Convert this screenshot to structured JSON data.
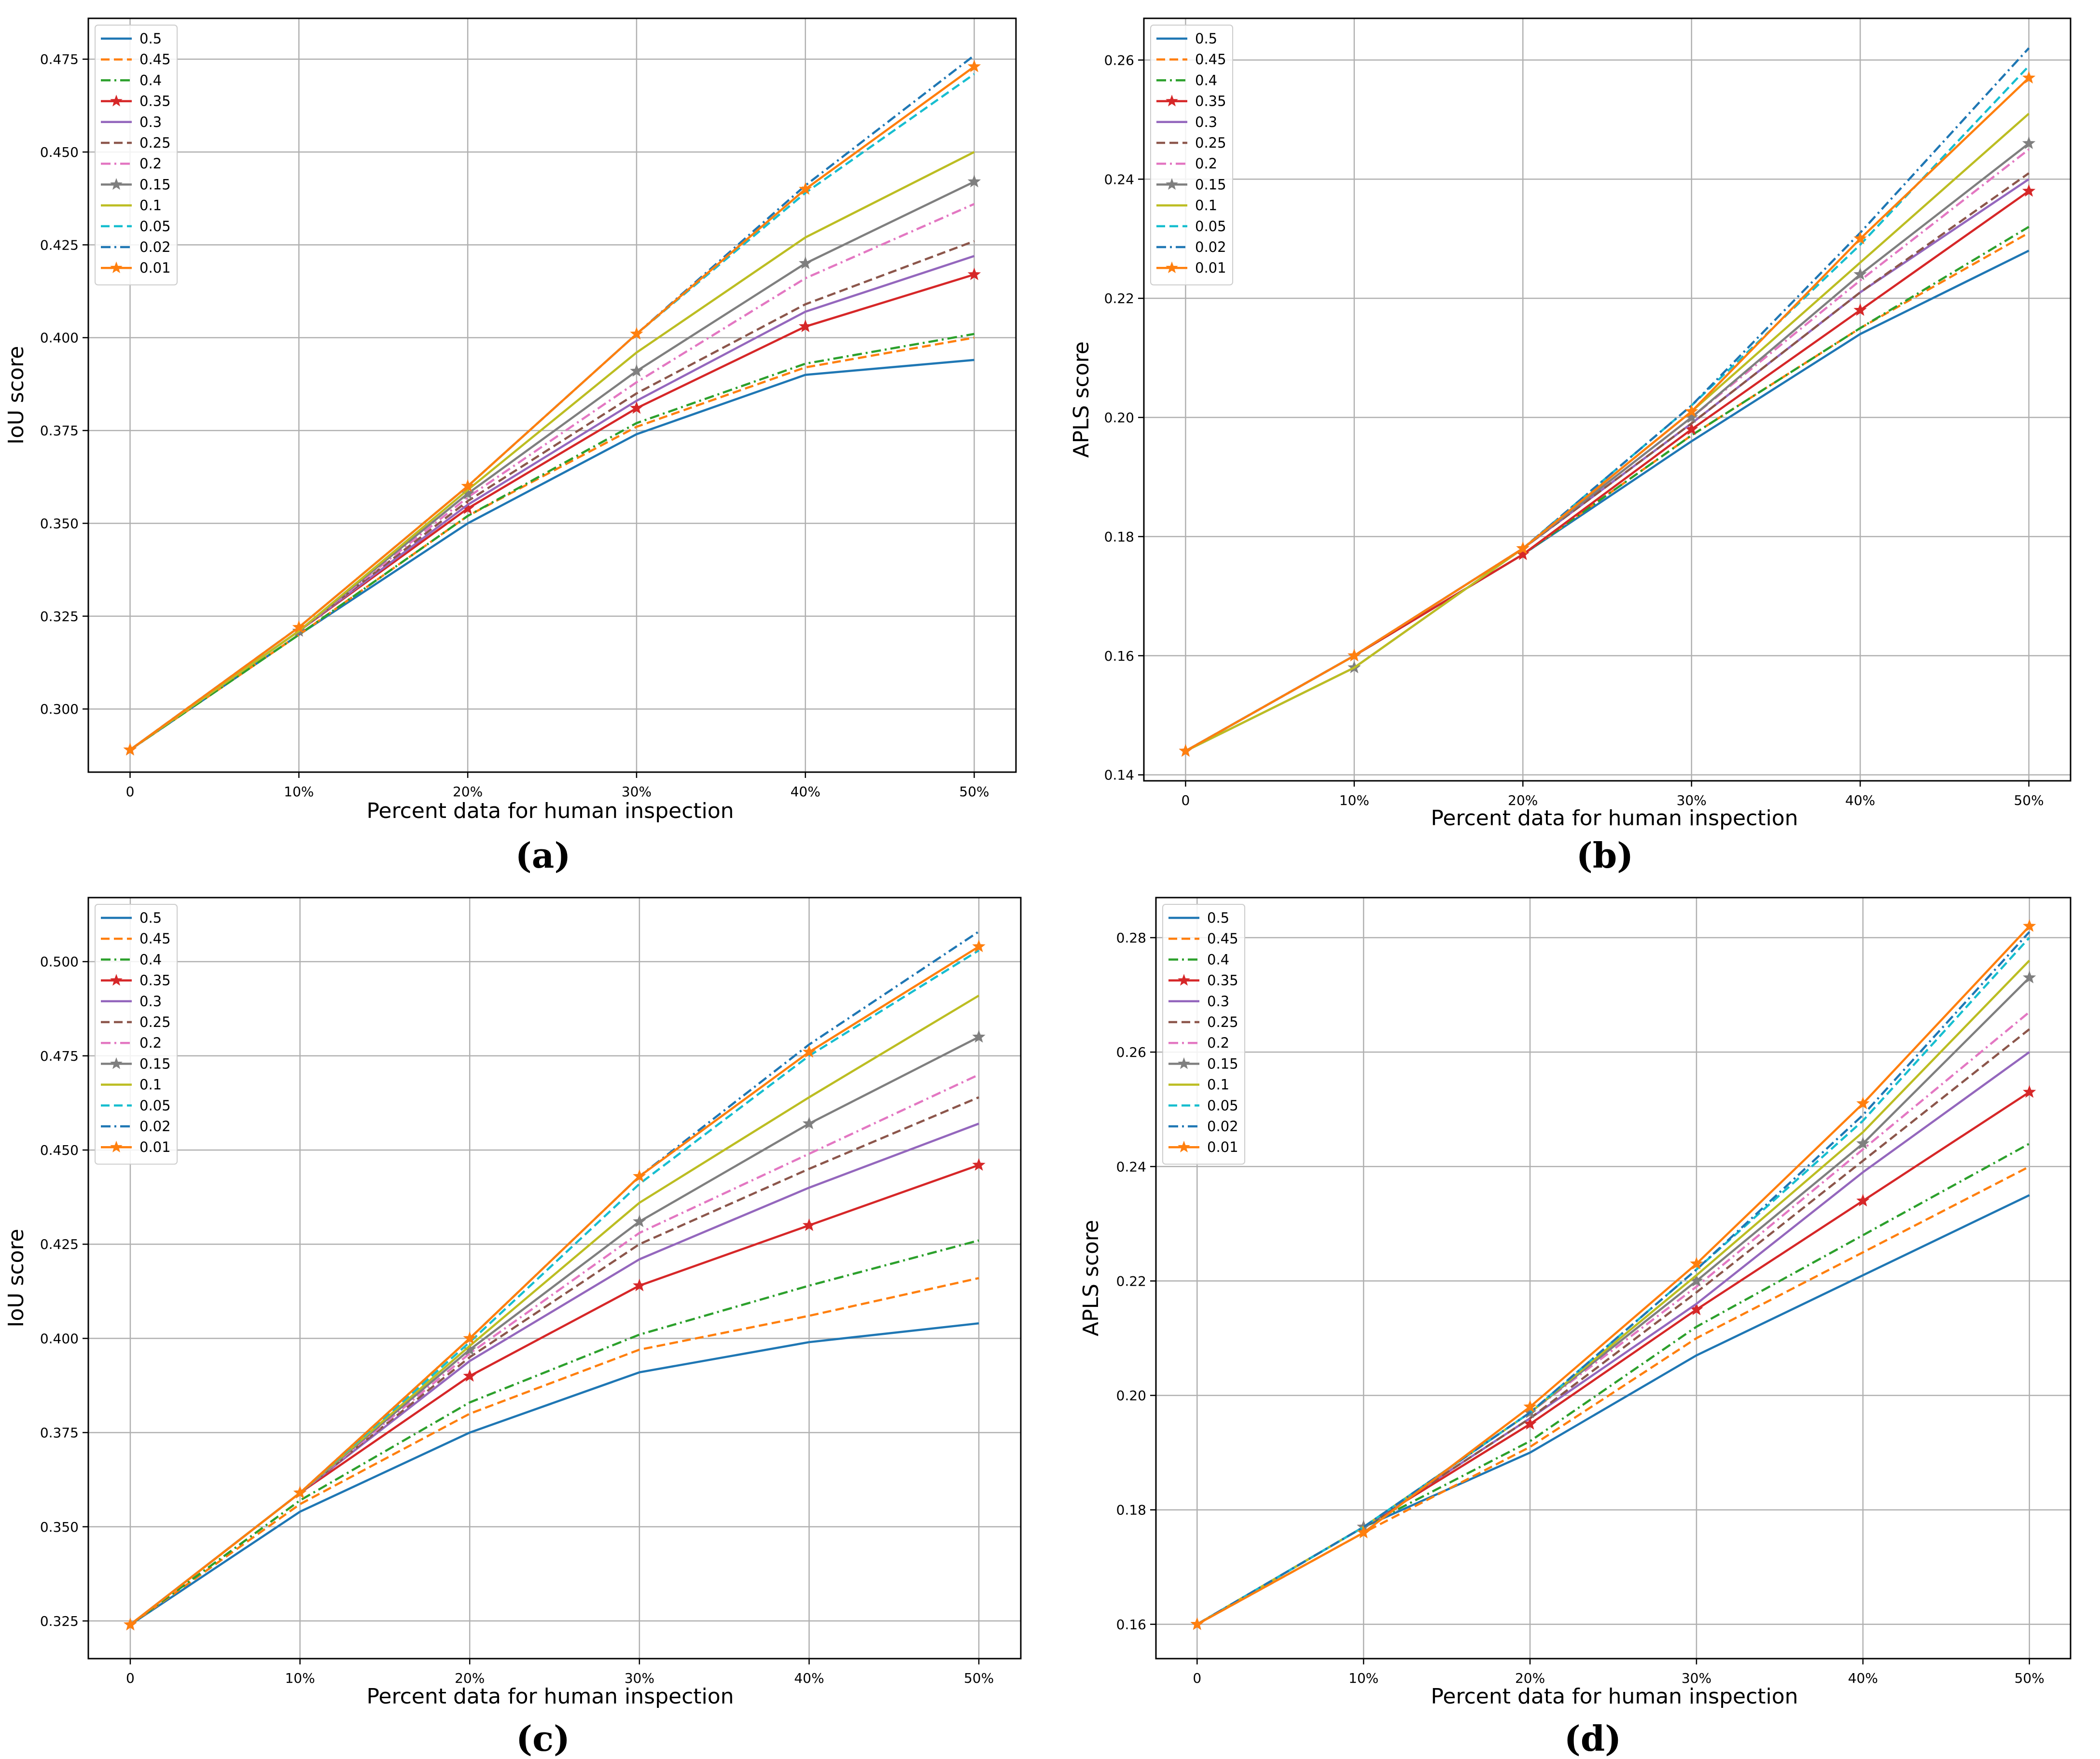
{
  "xlabel": "Percent data for human inspection",
  "legend_entries": [
    "0.5",
    "0.45",
    "0.4",
    "0.35",
    "0.3",
    "0.25",
    "0.2",
    "0.15",
    "0.1",
    "0.05",
    "0.02",
    "0.01"
  ],
  "series_styles": [
    {
      "name": "0.5",
      "color": "#1f77b4",
      "dash": "solid",
      "marker": ""
    },
    {
      "name": "0.45",
      "color": "#ff7f0e",
      "dash": "dashed",
      "marker": ""
    },
    {
      "name": "0.4",
      "color": "#2ca02c",
      "dash": "dashdot",
      "marker": ""
    },
    {
      "name": "0.35",
      "color": "#d62728",
      "dash": "solid",
      "marker": "star"
    },
    {
      "name": "0.3",
      "color": "#9467bd",
      "dash": "solid",
      "marker": ""
    },
    {
      "name": "0.25",
      "color": "#8c564b",
      "dash": "dashed",
      "marker": ""
    },
    {
      "name": "0.2",
      "color": "#e377c2",
      "dash": "dashdot",
      "marker": ""
    },
    {
      "name": "0.15",
      "color": "#7f7f7f",
      "dash": "solid",
      "marker": "star"
    },
    {
      "name": "0.1",
      "color": "#bcbd22",
      "dash": "solid",
      "marker": ""
    },
    {
      "name": "0.05",
      "color": "#17becf",
      "dash": "dashed",
      "marker": ""
    },
    {
      "name": "0.02",
      "color": "#1f77b4",
      "dash": "dashdot",
      "marker": ""
    },
    {
      "name": "0.01",
      "color": "#ff7f0e",
      "dash": "solid",
      "marker": "star"
    }
  ],
  "chart_data": [
    {
      "type": "line",
      "panel_label": "(a)",
      "ylabel": "IoU score",
      "categories": [
        "0",
        "10%",
        "20%",
        "30%",
        "40%",
        "50%"
      ],
      "yticks": [
        "0.300",
        "0.325",
        "0.350",
        "0.375",
        "0.400",
        "0.425",
        "0.450",
        "0.475"
      ],
      "ylim": [
        0.283,
        0.486
      ],
      "grid": true,
      "legend_position": "top-left",
      "series": [
        {
          "name": "0.5",
          "values": [
            0.289,
            0.32,
            0.35,
            0.374,
            0.39,
            0.394
          ]
        },
        {
          "name": "0.45",
          "values": [
            0.289,
            0.32,
            0.352,
            0.376,
            0.392,
            0.4
          ]
        },
        {
          "name": "0.4",
          "values": [
            0.289,
            0.32,
            0.352,
            0.377,
            0.393,
            0.401
          ]
        },
        {
          "name": "0.35",
          "values": [
            0.289,
            0.321,
            0.354,
            0.381,
            0.403,
            0.417
          ]
        },
        {
          "name": "0.3",
          "values": [
            0.289,
            0.321,
            0.355,
            0.383,
            0.407,
            0.422
          ]
        },
        {
          "name": "0.25",
          "values": [
            0.289,
            0.321,
            0.356,
            0.385,
            0.409,
            0.426
          ]
        },
        {
          "name": "0.2",
          "values": [
            0.289,
            0.321,
            0.357,
            0.388,
            0.416,
            0.436
          ]
        },
        {
          "name": "0.15",
          "values": [
            0.289,
            0.321,
            0.358,
            0.391,
            0.42,
            0.442
          ]
        },
        {
          "name": "0.1",
          "values": [
            0.289,
            0.321,
            0.359,
            0.396,
            0.427,
            0.45
          ]
        },
        {
          "name": "0.05",
          "values": [
            0.289,
            0.322,
            0.36,
            0.401,
            0.439,
            0.471
          ]
        },
        {
          "name": "0.02",
          "values": [
            0.289,
            0.322,
            0.36,
            0.401,
            0.441,
            0.476
          ]
        },
        {
          "name": "0.01",
          "values": [
            0.289,
            0.322,
            0.36,
            0.401,
            0.44,
            0.473
          ]
        }
      ]
    },
    {
      "type": "line",
      "panel_label": "(b)",
      "ylabel": "APLS score",
      "categories": [
        "0",
        "10%",
        "20%",
        "30%",
        "40%",
        "50%"
      ],
      "yticks": [
        "0.14",
        "0.16",
        "0.18",
        "0.20",
        "0.22",
        "0.24",
        "0.26"
      ],
      "ylim": [
        0.139,
        0.267
      ],
      "grid": true,
      "legend_position": "top-left",
      "series": [
        {
          "name": "0.5",
          "values": [
            0.144,
            0.16,
            0.177,
            0.196,
            0.214,
            0.228
          ]
        },
        {
          "name": "0.45",
          "values": [
            0.144,
            0.16,
            0.177,
            0.197,
            0.215,
            0.231
          ]
        },
        {
          "name": "0.4",
          "values": [
            0.144,
            0.16,
            0.177,
            0.197,
            0.215,
            0.232
          ]
        },
        {
          "name": "0.35",
          "values": [
            0.144,
            0.16,
            0.177,
            0.198,
            0.218,
            0.238
          ]
        },
        {
          "name": "0.3",
          "values": [
            0.144,
            0.16,
            0.178,
            0.199,
            0.221,
            0.24
          ]
        },
        {
          "name": "0.25",
          "values": [
            0.144,
            0.16,
            0.178,
            0.199,
            0.221,
            0.241
          ]
        },
        {
          "name": "0.2",
          "values": [
            0.144,
            0.16,
            0.178,
            0.2,
            0.223,
            0.245
          ]
        },
        {
          "name": "0.15",
          "values": [
            0.144,
            0.158,
            0.178,
            0.2,
            0.224,
            0.246
          ]
        },
        {
          "name": "0.1",
          "values": [
            0.144,
            0.158,
            0.178,
            0.201,
            0.226,
            0.251
          ]
        },
        {
          "name": "0.05",
          "values": [
            0.144,
            0.16,
            0.178,
            0.202,
            0.229,
            0.259
          ]
        },
        {
          "name": "0.02",
          "values": [
            0.144,
            0.16,
            0.178,
            0.202,
            0.231,
            0.262
          ]
        },
        {
          "name": "0.01",
          "values": [
            0.144,
            0.16,
            0.178,
            0.201,
            0.23,
            0.257
          ]
        }
      ]
    },
    {
      "type": "line",
      "panel_label": "(c)",
      "ylabel": "IoU score",
      "categories": [
        "0",
        "10%",
        "20%",
        "30%",
        "40%",
        "50%"
      ],
      "yticks": [
        "0.325",
        "0.350",
        "0.375",
        "0.400",
        "0.425",
        "0.450",
        "0.475",
        "0.500"
      ],
      "ylim": [
        0.315,
        0.517
      ],
      "grid": true,
      "legend_position": "top-left",
      "series": [
        {
          "name": "0.5",
          "values": [
            0.324,
            0.354,
            0.375,
            0.391,
            0.399,
            0.404
          ]
        },
        {
          "name": "0.45",
          "values": [
            0.324,
            0.356,
            0.38,
            0.397,
            0.406,
            0.416
          ]
        },
        {
          "name": "0.4",
          "values": [
            0.324,
            0.357,
            0.383,
            0.401,
            0.414,
            0.426
          ]
        },
        {
          "name": "0.35",
          "values": [
            0.324,
            0.359,
            0.39,
            0.414,
            0.43,
            0.446
          ]
        },
        {
          "name": "0.3",
          "values": [
            0.324,
            0.359,
            0.394,
            0.421,
            0.44,
            0.457
          ]
        },
        {
          "name": "0.25",
          "values": [
            0.324,
            0.359,
            0.395,
            0.425,
            0.445,
            0.464
          ]
        },
        {
          "name": "0.2",
          "values": [
            0.324,
            0.359,
            0.396,
            0.428,
            0.449,
            0.47
          ]
        },
        {
          "name": "0.15",
          "values": [
            0.324,
            0.359,
            0.397,
            0.431,
            0.457,
            0.48
          ]
        },
        {
          "name": "0.1",
          "values": [
            0.324,
            0.359,
            0.398,
            0.436,
            0.464,
            0.491
          ]
        },
        {
          "name": "0.05",
          "values": [
            0.324,
            0.359,
            0.399,
            0.441,
            0.475,
            0.503
          ]
        },
        {
          "name": "0.02",
          "values": [
            0.324,
            0.359,
            0.4,
            0.443,
            0.478,
            0.508
          ]
        },
        {
          "name": "0.01",
          "values": [
            0.324,
            0.359,
            0.4,
            0.443,
            0.476,
            0.504
          ]
        }
      ]
    },
    {
      "type": "line",
      "panel_label": "(d)",
      "ylabel": "APLS score",
      "categories": [
        "0",
        "10%",
        "20%",
        "30%",
        "40%",
        "50%"
      ],
      "yticks": [
        "0.16",
        "0.18",
        "0.20",
        "0.22",
        "0.24",
        "0.26",
        "0.28"
      ],
      "ylim": [
        0.154,
        0.287
      ],
      "grid": true,
      "legend_position": "top-left",
      "series": [
        {
          "name": "0.5",
          "values": [
            0.16,
            0.177,
            0.19,
            0.207,
            0.221,
            0.235
          ]
        },
        {
          "name": "0.45",
          "values": [
            0.16,
            0.176,
            0.191,
            0.21,
            0.225,
            0.24
          ]
        },
        {
          "name": "0.4",
          "values": [
            0.16,
            0.177,
            0.192,
            0.212,
            0.228,
            0.244
          ]
        },
        {
          "name": "0.35",
          "values": [
            0.16,
            0.177,
            0.195,
            0.215,
            0.234,
            0.253
          ]
        },
        {
          "name": "0.3",
          "values": [
            0.16,
            0.177,
            0.196,
            0.216,
            0.239,
            0.26
          ]
        },
        {
          "name": "0.25",
          "values": [
            0.16,
            0.177,
            0.196,
            0.218,
            0.241,
            0.264
          ]
        },
        {
          "name": "0.2",
          "values": [
            0.16,
            0.177,
            0.197,
            0.219,
            0.243,
            0.267
          ]
        },
        {
          "name": "0.15",
          "values": [
            0.16,
            0.177,
            0.197,
            0.22,
            0.244,
            0.273
          ]
        },
        {
          "name": "0.1",
          "values": [
            0.16,
            0.177,
            0.197,
            0.221,
            0.246,
            0.276
          ]
        },
        {
          "name": "0.05",
          "values": [
            0.16,
            0.177,
            0.197,
            0.222,
            0.248,
            0.28
          ]
        },
        {
          "name": "0.02",
          "values": [
            0.16,
            0.177,
            0.197,
            0.222,
            0.249,
            0.281
          ]
        },
        {
          "name": "0.01",
          "values": [
            0.16,
            0.176,
            0.198,
            0.223,
            0.251,
            0.282
          ]
        }
      ]
    }
  ]
}
